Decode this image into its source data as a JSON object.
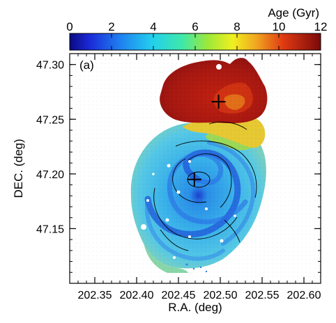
{
  "chart_data": {
    "type": "heatmap",
    "panel_label": "(a)",
    "xlabel": "R.A. (deg)",
    "ylabel": "DEC. (deg)",
    "xlim": [
      202.32,
      202.62
    ],
    "ylim": [
      47.1,
      47.31
    ],
    "x_reversed": false,
    "xticks": [
      202.35,
      202.4,
      202.45,
      202.5,
      202.55,
      202.6
    ],
    "xtick_labels": [
      "202.35",
      "202.40",
      "202.45",
      "202.50",
      "202.55",
      "202.60"
    ],
    "yticks": [
      47.15,
      47.2,
      47.25,
      47.3
    ],
    "ytick_labels": [
      "47.15",
      "47.20",
      "47.25",
      "47.30"
    ],
    "colorbar": {
      "label": "Age (Gyr)",
      "range": [
        0,
        12
      ],
      "ticks": [
        0,
        2,
        4,
        6,
        8,
        10,
        12
      ],
      "tick_labels": [
        "0",
        "2",
        "4",
        "6",
        "8",
        "10",
        "12"
      ],
      "colormap": "rainbow (blue → cyan → green → yellow → red)"
    },
    "markers": [
      {
        "name": "companion-nucleus",
        "x": 202.498,
        "y": 47.266,
        "symbol": "plus",
        "color": "#000000"
      },
      {
        "name": "main-nucleus",
        "x": 202.469,
        "y": 47.195,
        "symbol": "plus",
        "color": "#000000"
      }
    ],
    "regions": [
      {
        "name": "companion",
        "age_gyr": 11.5,
        "dominant_color": "#b0180f"
      },
      {
        "name": "tidal-bridge",
        "age_gyr": 7.5,
        "dominant_color": "#e8c830"
      },
      {
        "name": "main-disk",
        "age_gyr": 5,
        "dominant_color": "#3fb4e6"
      },
      {
        "name": "spiral-arms",
        "age_gyr": 3.5,
        "dominant_color": "#1f5fe0"
      }
    ]
  }
}
